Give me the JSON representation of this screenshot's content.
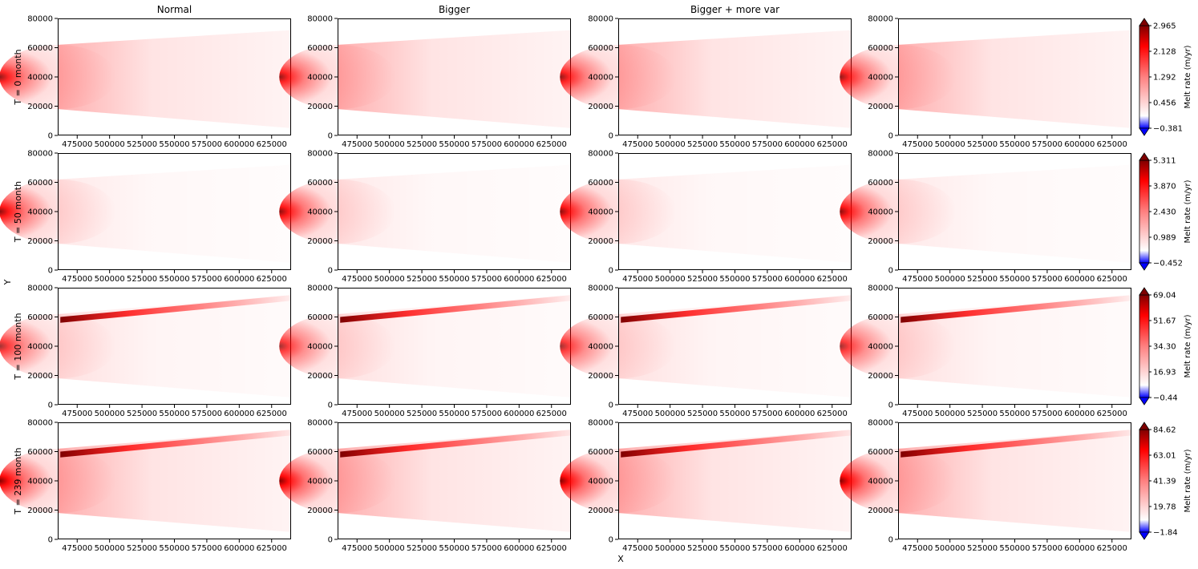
{
  "figure": {
    "xlabel": "X",
    "ylabel": "Y"
  },
  "chart_data": {
    "type": "heatmap",
    "columns": [
      "Normal",
      "Bigger",
      "Bigger + more var",
      ""
    ],
    "rows": [
      "T = 0 month",
      "T = 50 month",
      "T = 100 month",
      "T = 239 month"
    ],
    "x_ticks": [
      475000,
      500000,
      525000,
      550000,
      575000,
      600000,
      625000
    ],
    "x_tick_labels": [
      "475000",
      "500000",
      "525000",
      "550000",
      "575000",
      "600000",
      "625000"
    ],
    "xlim": [
      460000,
      640000
    ],
    "y_ticks": [
      0,
      20000,
      40000,
      60000,
      80000
    ],
    "y_tick_labels": [
      "0",
      "20000",
      "40000",
      "60000",
      "80000"
    ],
    "ylim": [
      0,
      80000
    ],
    "colorbar_label": "Melt rate (m/yr)",
    "colormap": "seismic",
    "colormap_colors": {
      "low": "#0000ff",
      "mid": "#ffffff",
      "high": "#ff0000",
      "max": "#7f0000"
    },
    "colorbars": [
      {
        "min": -0.381,
        "max": 2.965,
        "tick_labels": [
          "2.965",
          "2.128",
          "1.292",
          "0.456",
          "−0.381"
        ]
      },
      {
        "min": -0.452,
        "max": 5.311,
        "tick_labels": [
          "5.311",
          "3.870",
          "2.430",
          "0.989",
          "−0.452"
        ]
      },
      {
        "min": -0.44,
        "max": 69.04,
        "tick_labels": [
          "69.04",
          "51.67",
          "34.30",
          "16.93",
          "−0.44"
        ]
      },
      {
        "min": -1.84,
        "max": 84.62,
        "tick_labels": [
          "84.62",
          "63.01",
          "41.39",
          "19.78",
          "−1.84"
        ]
      }
    ]
  }
}
